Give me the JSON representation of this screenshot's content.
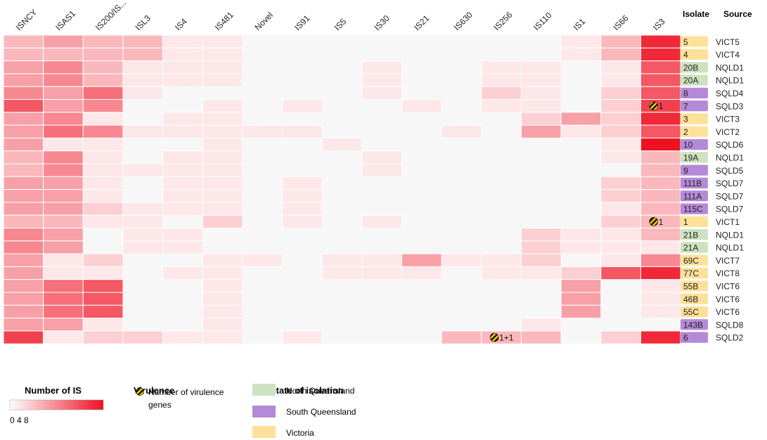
{
  "chart_data": {
    "type": "heatmap",
    "columns": [
      "ISNCY",
      "ISAS1",
      "IS200/IS...",
      "ISL3",
      "IS4",
      "IS481",
      "Novel",
      "IS91",
      "IS5",
      "IS30",
      "IS21",
      "IS630",
      "IS256",
      "IS110",
      "IS1",
      "IS66",
      "IS3"
    ],
    "isolate_header": "Isolate",
    "source_header": "Source",
    "rows": [
      {
        "isolate": "5",
        "source": "VICT5",
        "state": "Victoria",
        "values": [
          3,
          4,
          3,
          3,
          1,
          1,
          0,
          0,
          0,
          0,
          0,
          0,
          0,
          0,
          1,
          3,
          9
        ]
      },
      {
        "isolate": "4",
        "source": "VICT4",
        "state": "Victoria",
        "values": [
          3,
          3,
          3,
          3,
          1,
          1,
          0,
          0,
          0,
          0,
          0,
          0,
          0,
          0,
          1,
          3,
          9
        ]
      },
      {
        "isolate": "20B",
        "source": "NQLD1",
        "state": "North Queensland",
        "values": [
          4,
          5,
          3,
          1,
          1,
          1,
          0,
          0,
          0,
          1,
          0,
          0,
          1,
          1,
          0,
          1,
          7
        ]
      },
      {
        "isolate": "20A",
        "source": "NQLD1",
        "state": "North Queensland",
        "values": [
          4,
          5,
          3,
          1,
          1,
          1,
          0,
          0,
          0,
          1,
          0,
          0,
          1,
          1,
          0,
          1,
          7
        ]
      },
      {
        "isolate": "8",
        "source": "SQLD4",
        "state": "South Queensland",
        "values": [
          5,
          4,
          6,
          1,
          0,
          0,
          0,
          0,
          0,
          1,
          0,
          0,
          2,
          1,
          0,
          2,
          7
        ]
      },
      {
        "isolate": "7",
        "source": "SQLD3",
        "state": "South Queensland",
        "values": [
          7,
          4,
          5,
          0,
          0,
          1,
          0,
          1,
          0,
          0,
          1,
          0,
          1,
          1,
          0,
          2,
          8
        ]
      },
      {
        "isolate": "3",
        "source": "VICT3",
        "state": "Victoria",
        "values": [
          4,
          5,
          1,
          0,
          1,
          1,
          0,
          0,
          0,
          0,
          0,
          0,
          0,
          2,
          4,
          2,
          9
        ]
      },
      {
        "isolate": "2",
        "source": "VICT2",
        "state": "Victoria",
        "values": [
          4,
          6,
          5,
          1,
          1,
          1,
          1,
          1,
          0,
          0,
          0,
          1,
          0,
          4,
          1,
          2,
          7
        ]
      },
      {
        "isolate": "10",
        "source": "SQLD6",
        "state": "South Queensland",
        "values": [
          4,
          1,
          1,
          0,
          0,
          1,
          0,
          0,
          1,
          0,
          0,
          0,
          0,
          0,
          0,
          1,
          10
        ]
      },
      {
        "isolate": "19A",
        "source": "NQLD1",
        "state": "North Queensland",
        "values": [
          3,
          5,
          1,
          0,
          1,
          1,
          0,
          0,
          0,
          1,
          0,
          0,
          0,
          0,
          0,
          1,
          3
        ]
      },
      {
        "isolate": "9",
        "source": "SQLD5",
        "state": "South Queensland",
        "values": [
          3,
          5,
          1,
          1,
          1,
          1,
          0,
          0,
          0,
          1,
          0,
          0,
          0,
          0,
          0,
          0,
          3
        ]
      },
      {
        "isolate": "111B",
        "source": "SQLD7",
        "state": "South Queensland",
        "values": [
          4,
          4,
          1,
          0,
          1,
          1,
          0,
          1,
          0,
          0,
          0,
          0,
          0,
          0,
          0,
          2,
          3
        ]
      },
      {
        "isolate": "111A",
        "source": "SQLD7",
        "state": "South Queensland",
        "values": [
          4,
          4,
          1,
          0,
          1,
          1,
          0,
          1,
          0,
          0,
          0,
          0,
          0,
          0,
          0,
          2,
          3
        ]
      },
      {
        "isolate": "115C",
        "source": "SQLD7",
        "state": "South Queensland",
        "values": [
          4,
          4,
          2,
          1,
          1,
          1,
          0,
          1,
          0,
          0,
          0,
          0,
          0,
          0,
          0,
          1,
          3
        ]
      },
      {
        "isolate": "1",
        "source": "VICT1",
        "state": "Victoria",
        "values": [
          3,
          3,
          1,
          1,
          0,
          2,
          0,
          1,
          0,
          1,
          0,
          0,
          0,
          0,
          0,
          2,
          3
        ]
      },
      {
        "isolate": "21B",
        "source": "NQLD1",
        "state": "North Queensland",
        "values": [
          5,
          4,
          0,
          1,
          1,
          0,
          0,
          0,
          0,
          0,
          0,
          0,
          0,
          2,
          1,
          1,
          3
        ]
      },
      {
        "isolate": "21A",
        "source": "NQLD1",
        "state": "North Queensland",
        "values": [
          5,
          4,
          0,
          1,
          1,
          0,
          0,
          0,
          0,
          0,
          0,
          0,
          0,
          2,
          1,
          1,
          1
        ]
      },
      {
        "isolate": "69C",
        "source": "VICT7",
        "state": "Victoria",
        "values": [
          4,
          1,
          2,
          0,
          0,
          1,
          1,
          0,
          1,
          1,
          4,
          1,
          1,
          2,
          0,
          1,
          5
        ]
      },
      {
        "isolate": "77C",
        "source": "VICT8",
        "state": "Victoria",
        "values": [
          4,
          1,
          1,
          0,
          1,
          1,
          0,
          0,
          1,
          1,
          1,
          0,
          1,
          1,
          2,
          7,
          9
        ]
      },
      {
        "isolate": "55B",
        "source": "VICT6",
        "state": "Victoria",
        "values": [
          4,
          6,
          7,
          0,
          0,
          1,
          0,
          0,
          0,
          0,
          0,
          0,
          0,
          0,
          4,
          0,
          1
        ]
      },
      {
        "isolate": "46B",
        "source": "VICT6",
        "state": "Victoria",
        "values": [
          4,
          6,
          7,
          0,
          0,
          1,
          0,
          0,
          0,
          0,
          0,
          0,
          0,
          0,
          4,
          0,
          1
        ]
      },
      {
        "isolate": "55C",
        "source": "VICT6",
        "state": "Victoria",
        "values": [
          4,
          6,
          7,
          0,
          0,
          1,
          0,
          0,
          0,
          0,
          0,
          0,
          0,
          0,
          4,
          0,
          1
        ]
      },
      {
        "isolate": "143B",
        "source": "SQLD8",
        "state": "South Queensland",
        "values": [
          4,
          4,
          1,
          0,
          0,
          1,
          0,
          0,
          0,
          0,
          0,
          0,
          0,
          1,
          0,
          0,
          0
        ]
      },
      {
        "isolate": "6",
        "source": "SQLD2",
        "state": "South Queensland",
        "values": [
          8,
          1,
          2,
          2,
          1,
          1,
          0,
          1,
          0,
          0,
          0,
          3,
          3,
          3,
          0,
          2,
          9
        ]
      }
    ],
    "virulence_markers": [
      {
        "isolate": "7",
        "column": "IS3",
        "label": "1"
      },
      {
        "isolate": "1",
        "column": "IS3",
        "label": "1"
      },
      {
        "isolate": "6",
        "column": "IS256",
        "label": "1+1"
      }
    ],
    "color_scale": {
      "title": "Number of IS",
      "min": 0,
      "max": 10,
      "low_color": "#ffffff",
      "high_color": "#ee1122",
      "ticks_label": "0 4 8"
    },
    "state_colors": {
      "North Queensland": "#cde2bf",
      "South Queensland": "#b48ad8",
      "Victoria": "#fde19a"
    },
    "empty_color": "#f7f7f7"
  },
  "legend": {
    "virulence_title": "Virulence",
    "virulence_label_line1": "Number of virulence",
    "virulence_label_line2": "genes",
    "state_title": "State of isolation",
    "states": [
      "North Queensland",
      "South Queensland",
      "Victoria"
    ]
  }
}
